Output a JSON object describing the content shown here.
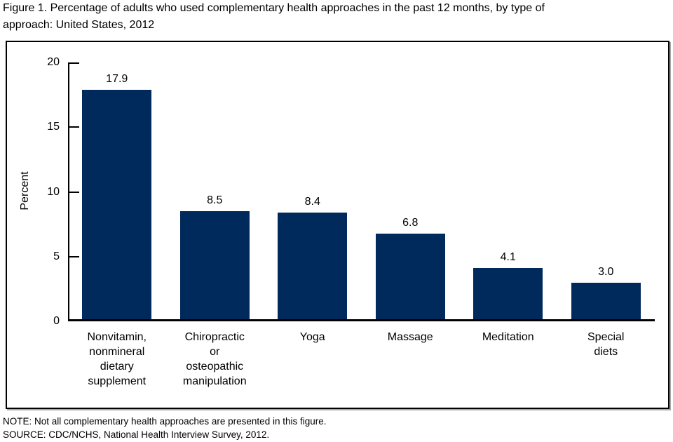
{
  "figure": {
    "title": "Figure 1. Percentage of adults who used complementary health approaches in the past 12 months, by type of\napproach: United States, 2012",
    "note": "NOTE: Not all complementary health approaches are presented in this figure.",
    "source": "SOURCE: CDC/NCHS, National Health Interview Survey, 2012."
  },
  "chart_data": {
    "type": "bar",
    "title": "Figure 1. Percentage of adults who used complementary health approaches in the past 12 months, by type of approach: United States, 2012",
    "categories": [
      "Nonvitamin,\nnonmineral\ndietary\nsupplement",
      "Chiropractic\nor\nosteopathic\nmanipulation",
      "Yoga",
      "Massage",
      "Meditation",
      "Special\ndiets"
    ],
    "values": [
      17.9,
      8.5,
      8.4,
      6.8,
      4.1,
      3.0
    ],
    "value_labels": [
      "17.9",
      "8.5",
      "8.4",
      "6.8",
      "4.1",
      "3.0"
    ],
    "xlabel": "",
    "ylabel": "Percent",
    "ylim": [
      0,
      20
    ],
    "yticks": [
      0,
      5,
      10,
      15,
      20
    ],
    "grid": false,
    "legend": "none",
    "bar_color": "#002a5c",
    "axis_color": "#000000"
  }
}
